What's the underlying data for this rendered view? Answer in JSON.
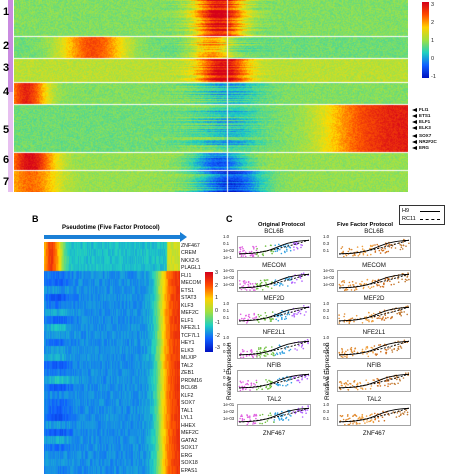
{
  "panel_a": {
    "cluster_labels": [
      "1",
      "2",
      "3",
      "4",
      "5",
      "6",
      "7"
    ],
    "colorbar_ticks": [
      "3",
      "2",
      "1",
      "0",
      "-1"
    ],
    "annotated_genes": [
      "FLI1",
      "ETS1",
      "ELF1",
      "ELK3",
      "SOX7",
      "NR2F2C",
      "ERG"
    ]
  },
  "panel_b": {
    "label": "B",
    "pseudotime_label": "Pseudotime (Five Factor Protocol)",
    "colorbar_ticks": [
      "3",
      "2",
      "1",
      "0",
      "-1",
      "-2",
      "-3"
    ],
    "genes": [
      "ZNF467",
      "CREM",
      "NKX2-5",
      "PLAGL1",
      "FLI1",
      "MECOM",
      "ETS1",
      "STAT3",
      "KLF3",
      "MEF2C",
      "ELF1",
      "NFE2L1",
      "TCF7L1",
      "HEY1",
      "ELK3",
      "MLXIP",
      "TAL2",
      "ZEB1",
      "PRDM16",
      "BCL6B",
      "KLF2",
      "SOX7",
      "TAL1",
      "LYL1",
      "HHEX",
      "MEF2C",
      "GATA2",
      "SOX17",
      "ERG",
      "SOX18",
      "EPAS1"
    ]
  },
  "panel_c": {
    "label": "C",
    "original_title": "Original Protocol",
    "five_factor_title": "Five Factor Protocol",
    "ylabel": "Relative Expression",
    "legend": [
      {
        "name": "H9"
      },
      {
        "name": "RC11"
      }
    ],
    "genes": [
      "BCL6B",
      "MECOM",
      "MEF2D",
      "NFE2L1",
      "NFIB",
      "TAL2",
      "ZNF467"
    ],
    "left_ticks": [
      [
        "1.0",
        "0.1",
        "1e-02",
        "1e-1"
      ],
      [
        "1e-01",
        "1e-02",
        "1e-03"
      ],
      [
        "1.0",
        "0.1",
        "0.1"
      ],
      [
        "1.0",
        "0.3",
        "0.1"
      ],
      [
        "1.0",
        "0.3",
        "0.1"
      ],
      [
        "1e-01",
        "1e-02",
        "1e-03"
      ],
      []
    ],
    "right_ticks": [
      [
        "1.0",
        "0.3",
        "0.1"
      ],
      [
        "1e-01",
        "1e-02",
        "1e-03"
      ],
      [
        "1.0",
        "0.3",
        "0.1"
      ],
      [
        "1.0",
        "0.3",
        "0.1"
      ],
      [
        "1.0",
        "0.3",
        "0.1"
      ],
      [
        "1.0",
        "0.3",
        "0.1"
      ],
      []
    ]
  }
}
